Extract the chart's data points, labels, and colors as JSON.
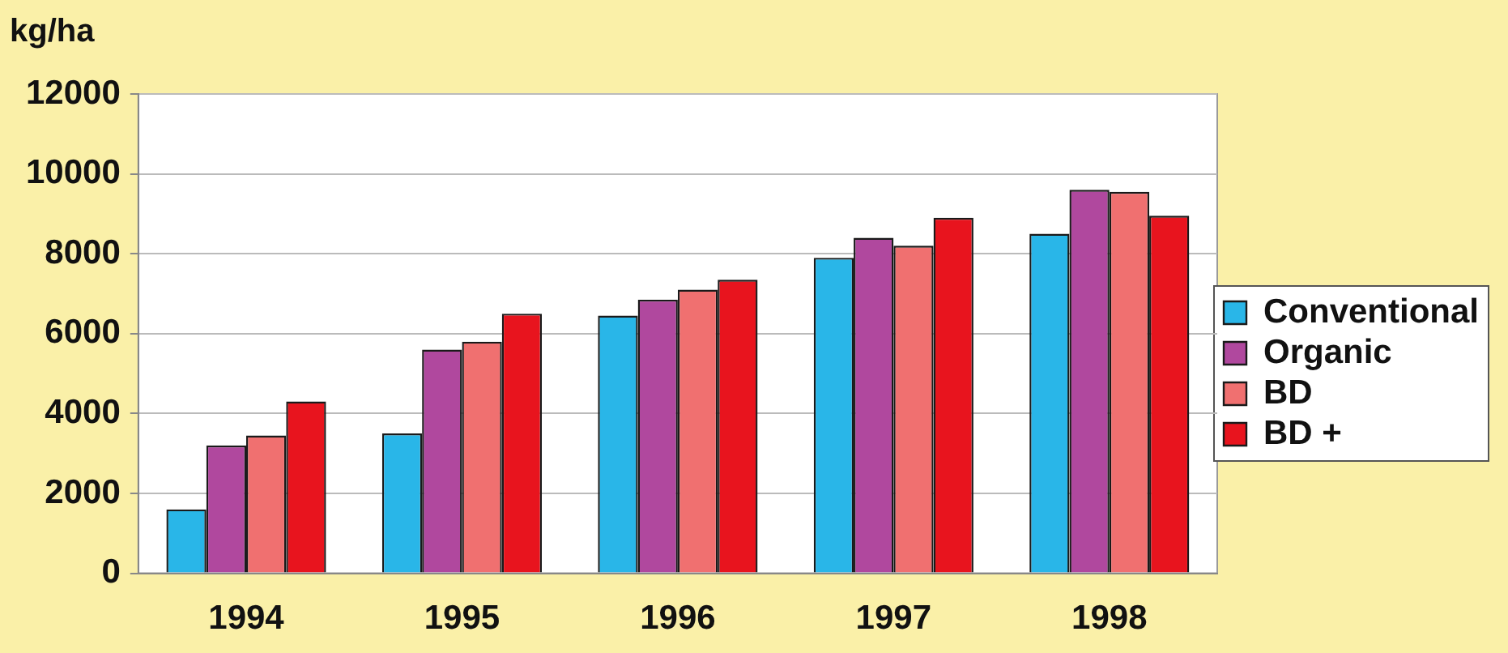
{
  "chart_data": {
    "type": "bar",
    "ylabel": "kg/ha",
    "categories": [
      "1994",
      "1995",
      "1996",
      "1997",
      "1998"
    ],
    "series": [
      {
        "name": "Conventional",
        "color": "#29b6e8",
        "values": [
          1600,
          3500,
          6450,
          7900,
          8500
        ]
      },
      {
        "name": "Organic",
        "color": "#b0489e",
        "values": [
          3200,
          5600,
          6850,
          8400,
          9600
        ]
      },
      {
        "name": "BD",
        "color": "#f07070",
        "values": [
          3450,
          5800,
          7100,
          8200,
          9550
        ]
      },
      {
        "name": "BD +",
        "color": "#e8141e",
        "values": [
          4300,
          6500,
          7350,
          8900,
          8950
        ]
      }
    ],
    "ylim": [
      0,
      12000
    ],
    "yticks": [
      0,
      2000,
      4000,
      6000,
      8000,
      10000,
      12000
    ],
    "grid": "y",
    "legend": "right"
  }
}
